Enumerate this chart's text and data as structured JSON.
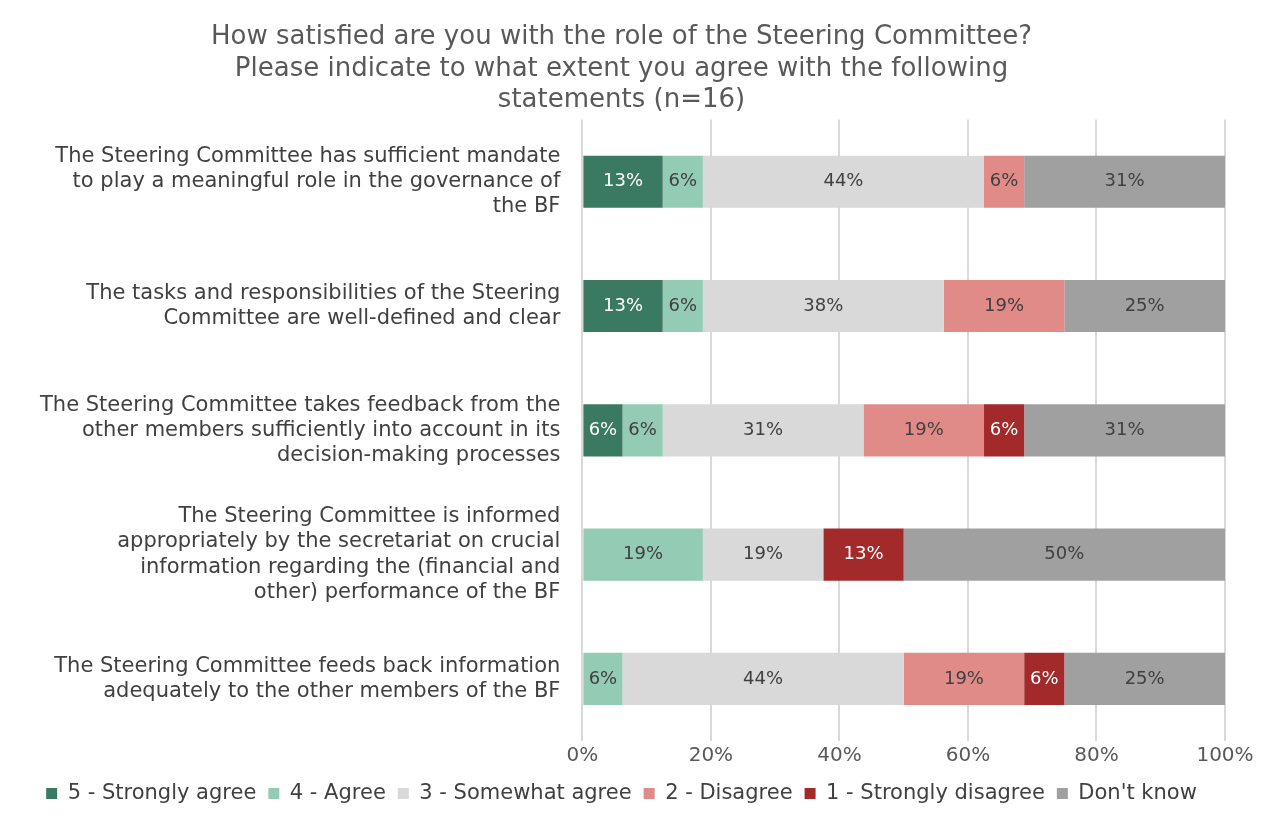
{
  "chart_data": {
    "type": "bar",
    "orientation": "horizontal",
    "stacked": true,
    "title": "How satisfied are you with the role of the Steering Committee? Please indicate to what extent you agree with the following statements (n=16)",
    "categories": [
      "The Steering Committee has sufficient mandate to play a meaningful role in the governance of the BF",
      "The tasks and responsibilities of the Steering Committee are well-defined and clear",
      "The Steering Committee takes feedback from the other members sufficiently into account in its decision-making processes",
      "The Steering Committee is informed appropriately by the secretariat on crucial information regarding the (financial and other) performance of the BF",
      "The Steering Committee feeds back information adequately to the other members of the BF"
    ],
    "series": [
      {
        "name": "5 - Strongly agree",
        "color": "#3b7a62",
        "values": [
          12.5,
          12.5,
          6.25,
          null,
          null
        ],
        "value_labels": [
          "13%",
          "13%",
          "6%",
          null,
          null
        ]
      },
      {
        "name": "4 - Agree",
        "color": "#93cbb4",
        "values": [
          6.25,
          6.25,
          6.25,
          18.75,
          6.25
        ],
        "value_labels": [
          "6%",
          "6%",
          "6%",
          "19%",
          "6%"
        ]
      },
      {
        "name": "3 - Somewhat agree",
        "color": "#d9d9d9",
        "values": [
          43.75,
          37.5,
          31.25,
          18.75,
          43.75
        ],
        "value_labels": [
          "44%",
          "38%",
          "31%",
          "19%",
          "44%"
        ]
      },
      {
        "name": "2 - Disagree",
        "color": "#e08b87",
        "values": [
          6.25,
          18.75,
          18.75,
          null,
          18.75
        ],
        "value_labels": [
          "6%",
          "19%",
          "19%",
          null,
          "19%"
        ]
      },
      {
        "name": "1 - Strongly disagree",
        "color": "#a32a2a",
        "values": [
          null,
          null,
          6.25,
          12.5,
          6.25
        ],
        "value_labels": [
          null,
          null,
          "6%",
          "13%",
          "6%"
        ]
      },
      {
        "name": "Don't know",
        "color": "#a0a0a0",
        "values": [
          31.25,
          25,
          31.25,
          50,
          25
        ],
        "value_labels": [
          "31%",
          "25%",
          "31%",
          "50%",
          "25%"
        ]
      }
    ],
    "xlim": [
      0,
      100
    ],
    "xticks": [
      {
        "value": 0,
        "label": "0%"
      },
      {
        "value": 20,
        "label": "20%"
      },
      {
        "value": 40,
        "label": "40%"
      },
      {
        "value": 60,
        "label": "60%"
      },
      {
        "value": 80,
        "label": "80%"
      },
      {
        "value": 100,
        "label": "100%"
      }
    ],
    "grid": "x",
    "legend": "bottom"
  }
}
